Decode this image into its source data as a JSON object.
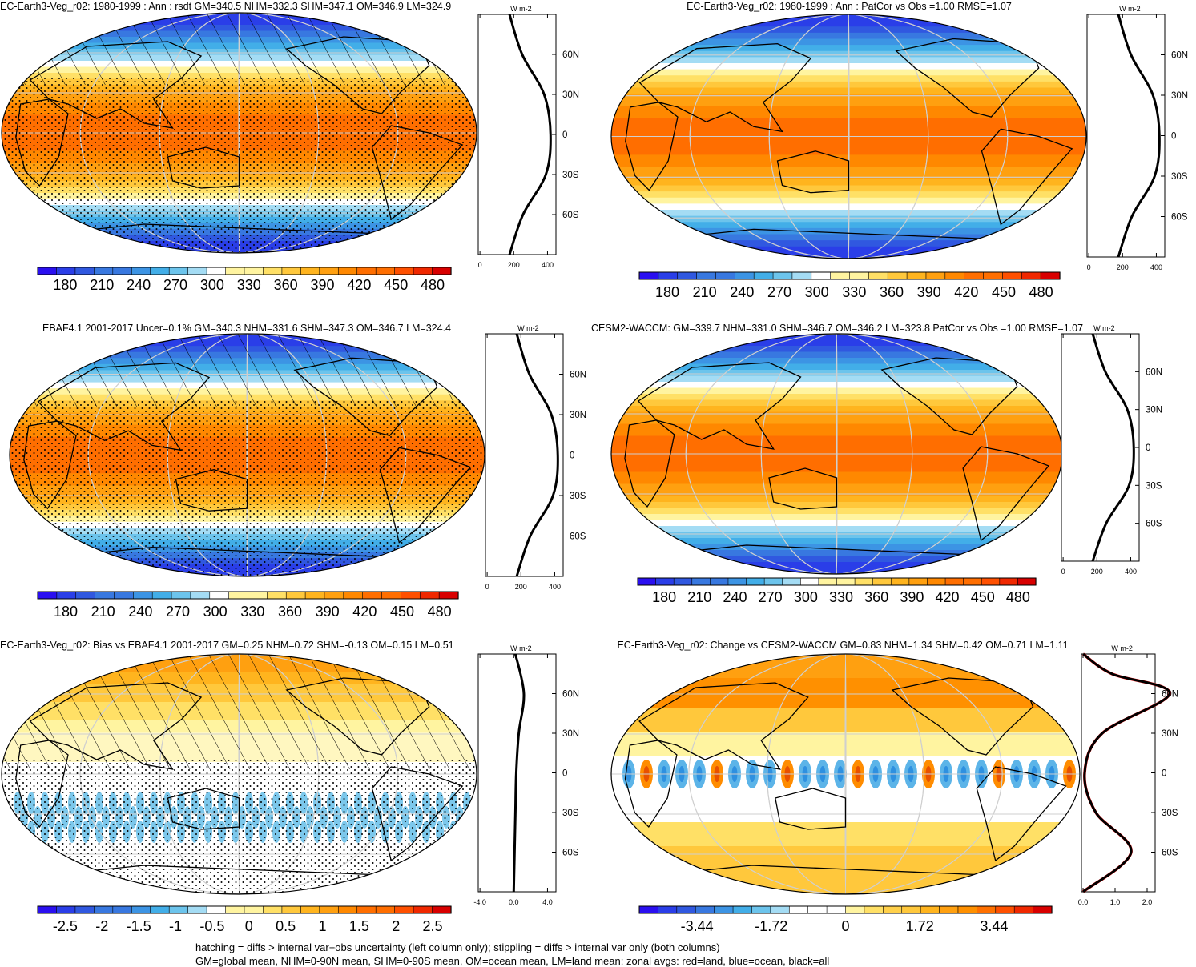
{
  "footer": {
    "line1": "hatching = diffs > internal var+obs uncertainty (left column only); stippling = diffs > internal var only (both columns)",
    "line2": "GM=global mean, NHM=0-90N mean, SHM=0-90S mean, OM=ocean mean, LM=land mean; zonal avgs: red=land, blue=ocean, black=all"
  },
  "zonal_unit_label": "W m-2",
  "lat_tick_labels": [
    "60N",
    "30N",
    "0",
    "30S",
    "60S"
  ],
  "colors": {
    "mean_scale": [
      "#2a0ff0",
      "#2a3ee8",
      "#3058e0",
      "#3878e0",
      "#3c94e4",
      "#42aee8",
      "#6cc4ec",
      "#a4dcf4",
      "#ffffff",
      "#fff4a0",
      "#ffe066",
      "#ffc83c",
      "#ffb41e",
      "#ffa010",
      "#ff8800",
      "#ff6e00",
      "#ff5000",
      "#f02800",
      "#d80000"
    ],
    "zonal_line": "#000000",
    "zonal_land": "#ff0000",
    "grid": "#cfcfcf"
  },
  "panels": [
    {
      "title": "EC-Earth3-Veg_r02: 1980-1999 : Ann : rsdt GM=340.5 NHM=332.3 SHM=347.1 OM=346.9 LM=324.9",
      "field": "mean",
      "hatch": "north",
      "stipple": "most",
      "colorbar_labels": [
        "180",
        "210",
        "240",
        "270",
        "300",
        "330",
        "360",
        "390",
        "420",
        "450",
        "480"
      ],
      "zonal_x_ticks": [
        "0",
        "200",
        "400"
      ]
    },
    {
      "title": "EC-Earth3-Veg_r02: 1980-1999 : Ann : PatCor vs Obs =1.00 RMSE=1.07",
      "field": "mean",
      "hatch": "none",
      "stipple": "none",
      "colorbar_labels": [
        "180",
        "210",
        "240",
        "270",
        "300",
        "330",
        "360",
        "390",
        "420",
        "450",
        "480"
      ],
      "zonal_x_ticks": [
        "0",
        "200",
        "400"
      ]
    },
    {
      "title": "EBAF4.1 2001-2017 Uncer=0.1% GM=340.3 NHM=331.6 SHM=347.3 OM=346.7 LM=324.4",
      "field": "mean",
      "hatch": "north",
      "stipple": "most",
      "colorbar_labels": [
        "180",
        "210",
        "240",
        "270",
        "300",
        "330",
        "360",
        "390",
        "420",
        "450",
        "480"
      ],
      "zonal_x_ticks": [
        "0",
        "200",
        "400"
      ]
    },
    {
      "title": "CESM2-WACCM: GM=339.7 NHM=331.0 SHM=346.7 OM=346.2 LM=323.8 PatCor vs Obs =1.00 RMSE=1.07",
      "field": "mean",
      "hatch": "none",
      "stipple": "none",
      "colorbar_labels": [
        "180",
        "210",
        "240",
        "270",
        "300",
        "330",
        "360",
        "390",
        "420",
        "450",
        "480"
      ],
      "zonal_x_ticks": [
        "0",
        "200",
        "400"
      ]
    },
    {
      "title": "EC-Earth3-Veg_r02: Bias vs EBAF4.1 2001-2017 GM=0.25 NHM=0.72 SHM=-0.13 OM=0.15 LM=0.51",
      "field": "bias",
      "hatch": "north",
      "stipple": "south",
      "colorbar_labels": [
        "-2.5",
        "-2",
        "-1.5",
        "-1",
        "-0.5",
        "0",
        "0.5",
        "1",
        "1.5",
        "2",
        "2.5"
      ],
      "zonal_x_ticks": [
        "-4.0",
        "0.0",
        "4.0"
      ]
    },
    {
      "title": "EC-Earth3-Veg_r02: Change vs CESM2-WACCM GM=0.83 NHM=1.34 SHM=0.42 OM=0.71 LM=1.11",
      "field": "change",
      "hatch": "none",
      "stipple": "none",
      "colorbar_labels": [
        "-3.44",
        "-1.72",
        "0",
        "1.72",
        "3.44"
      ],
      "zonal_x_ticks": [
        "0.0",
        "1.0",
        "2.0"
      ]
    }
  ],
  "chart_data": [
    {
      "type": "heatmap",
      "title": "EC-Earth3-Veg_r02: 1980-1999 : Ann : rsdt GM=340.5 NHM=332.3 SHM=347.1 OM=346.9 LM=324.9",
      "colorbar": [
        180,
        210,
        240,
        270,
        300,
        330,
        360,
        390,
        420,
        450,
        480
      ],
      "zonal_mean": {
        "x_ticks": [
          0,
          200,
          400
        ],
        "lat": [
          -90,
          -60,
          -30,
          0,
          30,
          60,
          90
        ],
        "values": [
          175,
          255,
          390,
          418,
          380,
          250,
          175
        ]
      }
    },
    {
      "type": "heatmap",
      "title": "EC-Earth3-Veg_r02: 1980-1999 : Ann : PatCor vs Obs =1.00 RMSE=1.07",
      "colorbar": [
        180,
        210,
        240,
        270,
        300,
        330,
        360,
        390,
        420,
        450,
        480
      ],
      "zonal_mean": {
        "x_ticks": [
          0,
          200,
          400
        ],
        "lat": [
          -90,
          -60,
          -30,
          0,
          30,
          60,
          90
        ],
        "values": [
          175,
          255,
          390,
          418,
          380,
          250,
          175
        ]
      }
    },
    {
      "type": "heatmap",
      "title": "EBAF4.1 2001-2017 Uncer=0.1% GM=340.3 NHM=331.6 SHM=347.3 OM=346.7 LM=324.4",
      "colorbar": [
        180,
        210,
        240,
        270,
        300,
        330,
        360,
        390,
        420,
        450,
        480
      ],
      "zonal_mean": {
        "x_ticks": [
          0,
          200,
          400
        ],
        "lat": [
          -90,
          -60,
          -30,
          0,
          30,
          60,
          90
        ],
        "values": [
          175,
          255,
          390,
          418,
          380,
          250,
          175
        ]
      }
    },
    {
      "type": "heatmap",
      "title": "CESM2-WACCM: GM=339.7 NHM=331.0 SHM=346.7 OM=346.2 LM=323.8 PatCor vs Obs =1.00 RMSE=1.07",
      "colorbar": [
        180,
        210,
        240,
        270,
        300,
        330,
        360,
        390,
        420,
        450,
        480
      ],
      "zonal_mean": {
        "x_ticks": [
          0,
          200,
          400
        ],
        "lat": [
          -90,
          -60,
          -30,
          0,
          30,
          60,
          90
        ],
        "values": [
          175,
          255,
          390,
          418,
          380,
          250,
          175
        ]
      }
    },
    {
      "type": "heatmap",
      "title": "EC-Earth3-Veg_r02: Bias vs EBAF4.1 2001-2017 GM=0.25 NHM=0.72 SHM=-0.13 OM=0.15 LM=0.51",
      "colorbar": [
        -2.5,
        -2,
        -1.5,
        -1,
        -0.5,
        0,
        0.5,
        1,
        1.5,
        2,
        2.5
      ],
      "zonal_mean": {
        "x_ticks": [
          -4.0,
          0.0,
          4.0
        ],
        "lat": [
          -90,
          -60,
          -30,
          0,
          30,
          60,
          90
        ],
        "values": [
          0.0,
          0.1,
          0.2,
          0.3,
          0.6,
          1.2,
          0.2
        ]
      }
    },
    {
      "type": "heatmap",
      "title": "EC-Earth3-Veg_r02: Change vs CESM2-WACCM GM=0.83 NHM=1.34 SHM=0.42 OM=0.71 LM=1.11",
      "colorbar": [
        -3.44,
        -1.72,
        0,
        1.72,
        3.44
      ],
      "zonal_mean": {
        "x_ticks": [
          0.0,
          1.0,
          2.0
        ],
        "lat": [
          -90,
          -60,
          -30,
          0,
          30,
          60,
          75,
          90
        ],
        "values": [
          0.0,
          1.5,
          0.4,
          0.05,
          0.6,
          2.7,
          0.9,
          0.0
        ]
      }
    }
  ]
}
